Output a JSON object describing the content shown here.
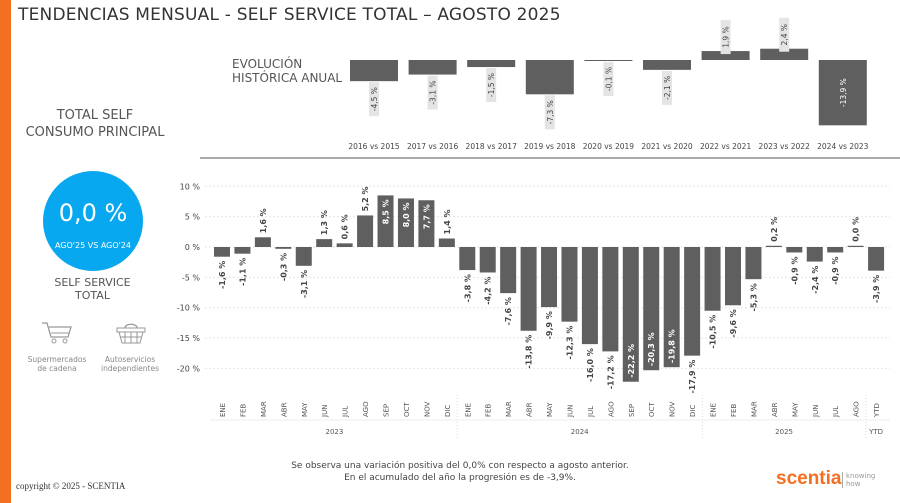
{
  "title": "TENDENCIAS MENSUAL - SELF SERVICE TOTAL – AGOSTO 2025",
  "left_panel": {
    "total_title_1": "TOTAL SELF",
    "total_title_2": "CONSUMO PRINCIPAL",
    "kpi_value": "0,0 %",
    "kpi_sub": "AGO'25 VS AGO'24",
    "kpi_color": "#08a8f0",
    "ss_1": "SELF SERVICE",
    "ss_2": "TOTAL",
    "segments": [
      {
        "icon": "shopping-cart-icon",
        "l1": "Supermercados",
        "l2": "de cadena"
      },
      {
        "icon": "shopping-basket-icon",
        "l1": "Autoservicios",
        "l2": "independientes"
      }
    ]
  },
  "evol_1": "EVOLUCIÓN",
  "evol_2": "HISTÓRICA ANUAL",
  "footnote_1": "Se observa una variación positiva del 0,0% con respecto a agosto anterior.",
  "footnote_2": "En el acumulado del año la progresión es de -3,9%.",
  "copyright": "copyright © 2025 - SCENTIA",
  "logo": {
    "name": "scentia",
    "tag_1": "knowing",
    "tag_2": "how"
  },
  "chart_data": [
    {
      "type": "bar",
      "title": "Evolución histórica anual",
      "categories": [
        "2016 vs 2015",
        "2017 vs 2016",
        "2018 vs 2017",
        "2019 vs 2018",
        "2020 vs 2019",
        "2021 vs 2020",
        "2022 vs 2021",
        "2023 vs 2022",
        "2024 vs 2023"
      ],
      "values": [
        -4.5,
        -3.1,
        -1.5,
        -7.3,
        -0.1,
        -2.1,
        1.9,
        2.4,
        -13.9
      ],
      "labels": [
        "-4,5 %",
        "-3,1 %",
        "-1,5 %",
        "-7,3 %",
        "-0,1 %",
        "-2,1 %",
        "1,9 %",
        "2,4 %",
        "-13,9 %"
      ],
      "bar_color": "#5f5f5f"
    },
    {
      "type": "bar",
      "title": "Tendencia mensual",
      "ylim": [
        -22.2,
        10
      ],
      "yticks": [
        10,
        5,
        0,
        -5,
        -10,
        -15,
        -20
      ],
      "ytick_labels": [
        "10 %",
        "5 %",
        "0 %",
        "-5 %",
        "-10 %",
        "-15 %",
        "-20 %"
      ],
      "grid": true,
      "groups": [
        {
          "label": "2023",
          "months": [
            "ENE",
            "FEB",
            "MAR",
            "ABR",
            "MAY",
            "JUN",
            "JUL",
            "AGO",
            "SEP",
            "OCT",
            "NOV",
            "DIC"
          ],
          "values": [
            -1.6,
            -1.1,
            1.6,
            -0.3,
            -3.1,
            1.3,
            0.6,
            5.2,
            8.5,
            8.0,
            7.7,
            1.4
          ]
        },
        {
          "label": "2024",
          "months": [
            "ENE",
            "FEB",
            "MAR",
            "ABR",
            "MAY",
            "JUN",
            "JUL",
            "AGO",
            "SEP",
            "OCT",
            "NOV",
            "DIC"
          ],
          "values": [
            -3.8,
            -4.2,
            -7.6,
            -13.8,
            -9.9,
            -12.3,
            -16.0,
            -17.2,
            -22.2,
            -20.3,
            -19.8,
            -17.9
          ]
        },
        {
          "label": "2025",
          "months": [
            "ENE",
            "FEB",
            "MAR",
            "ABR",
            "MAY",
            "JUN",
            "JUL",
            "AGO"
          ],
          "values": [
            -10.5,
            -9.6,
            -5.3,
            0.2,
            -0.9,
            -2.4,
            -0.9,
            0.0
          ]
        },
        {
          "label": "YTD",
          "months": [
            "YTD"
          ],
          "values": [
            -3.9
          ]
        }
      ],
      "bar_color": "#5f5f5f"
    }
  ]
}
